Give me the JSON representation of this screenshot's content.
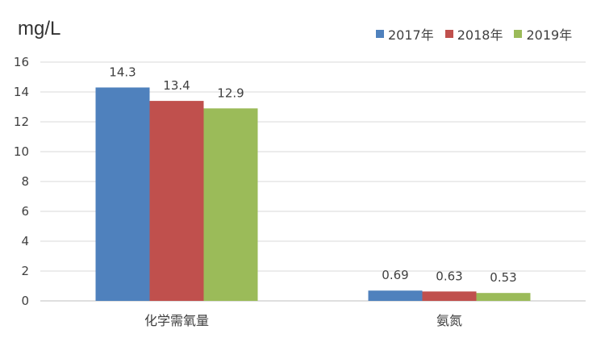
{
  "chart_data": {
    "type": "bar",
    "title": "",
    "unit_label": "mg/L",
    "xlabel": "",
    "ylabel": "",
    "categories": [
      "化学需氧量",
      "氨氮"
    ],
    "series": [
      {
        "name": "2017年",
        "values": [
          14.3,
          0.69
        ],
        "labels": [
          "14.3",
          "0.69"
        ],
        "color": "#4F81BD"
      },
      {
        "name": "2018年",
        "values": [
          13.4,
          0.63
        ],
        "labels": [
          "13.4",
          "0.63"
        ],
        "color": "#C0504D"
      },
      {
        "name": "2019年",
        "values": [
          12.9,
          0.53
        ],
        "labels": [
          "12.9",
          "0.53"
        ],
        "color": "#9BBB59"
      }
    ],
    "ylim": [
      0,
      16
    ],
    "yticks": [
      "0",
      "2",
      "4",
      "6",
      "8",
      "10",
      "12",
      "14",
      "16"
    ],
    "grid": true,
    "legend_position": "top-right",
    "colors": {
      "grid": "#D9D9D9",
      "axis": "#BFBFBF",
      "text": "#404040"
    }
  }
}
